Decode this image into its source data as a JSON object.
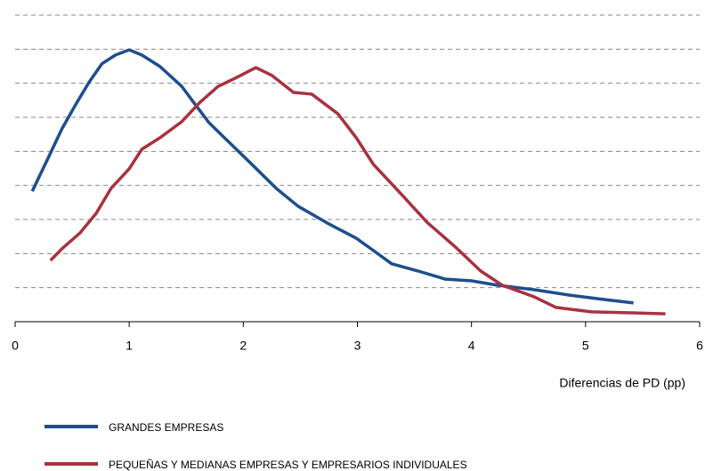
{
  "chart_data": {
    "type": "line",
    "xlabel": "Diferencias de PD (pp)",
    "xlim": [
      0,
      6
    ],
    "xticks": [
      0,
      1,
      2,
      3,
      4,
      5,
      6
    ],
    "ylim": [
      0,
      9
    ],
    "yticks": [
      1,
      2,
      3,
      4,
      5,
      6,
      7,
      8,
      9
    ],
    "grid": true,
    "legend": "bottom",
    "series": [
      {
        "name": "GRANDES EMPRESAS",
        "color": "#1f4e8c",
        "x": [
          0.15,
          0.3,
          0.41,
          0.53,
          0.65,
          0.76,
          0.88,
          1.0,
          1.11,
          1.27,
          1.46,
          1.58,
          1.7,
          1.89,
          2.09,
          2.29,
          2.48,
          2.75,
          2.99,
          3.14,
          3.3,
          3.53,
          3.77,
          4.0,
          4.23,
          4.55,
          4.86,
          5.17,
          5.42
        ],
        "values": [
          3.83,
          4.88,
          5.66,
          6.37,
          7.04,
          7.57,
          7.83,
          7.98,
          7.83,
          7.49,
          6.91,
          6.37,
          5.84,
          5.22,
          4.57,
          3.91,
          3.39,
          2.87,
          2.45,
          2.09,
          1.7,
          1.49,
          1.25,
          1.2,
          1.07,
          0.94,
          0.78,
          0.65,
          0.55
        ]
      },
      {
        "name": "PEQUEÑAS Y MEDIANAS EMPRESAS Y EMPRESARIOS INDIVIDUALES",
        "color": "#a83240",
        "x": [
          0.31,
          0.41,
          0.57,
          0.71,
          0.84,
          1.0,
          1.11,
          1.27,
          1.46,
          1.62,
          1.78,
          1.93,
          2.11,
          2.25,
          2.44,
          2.6,
          2.83,
          2.99,
          3.14,
          3.38,
          3.61,
          3.85,
          4.08,
          4.27,
          4.55,
          4.74,
          5.05,
          5.4,
          5.7
        ],
        "values": [
          1.8,
          2.14,
          2.61,
          3.18,
          3.91,
          4.49,
          5.06,
          5.4,
          5.87,
          6.44,
          6.91,
          7.15,
          7.46,
          7.23,
          6.73,
          6.68,
          6.1,
          5.4,
          4.62,
          3.76,
          2.92,
          2.22,
          1.49,
          1.07,
          0.73,
          0.42,
          0.29,
          0.26,
          0.23
        ]
      }
    ]
  }
}
